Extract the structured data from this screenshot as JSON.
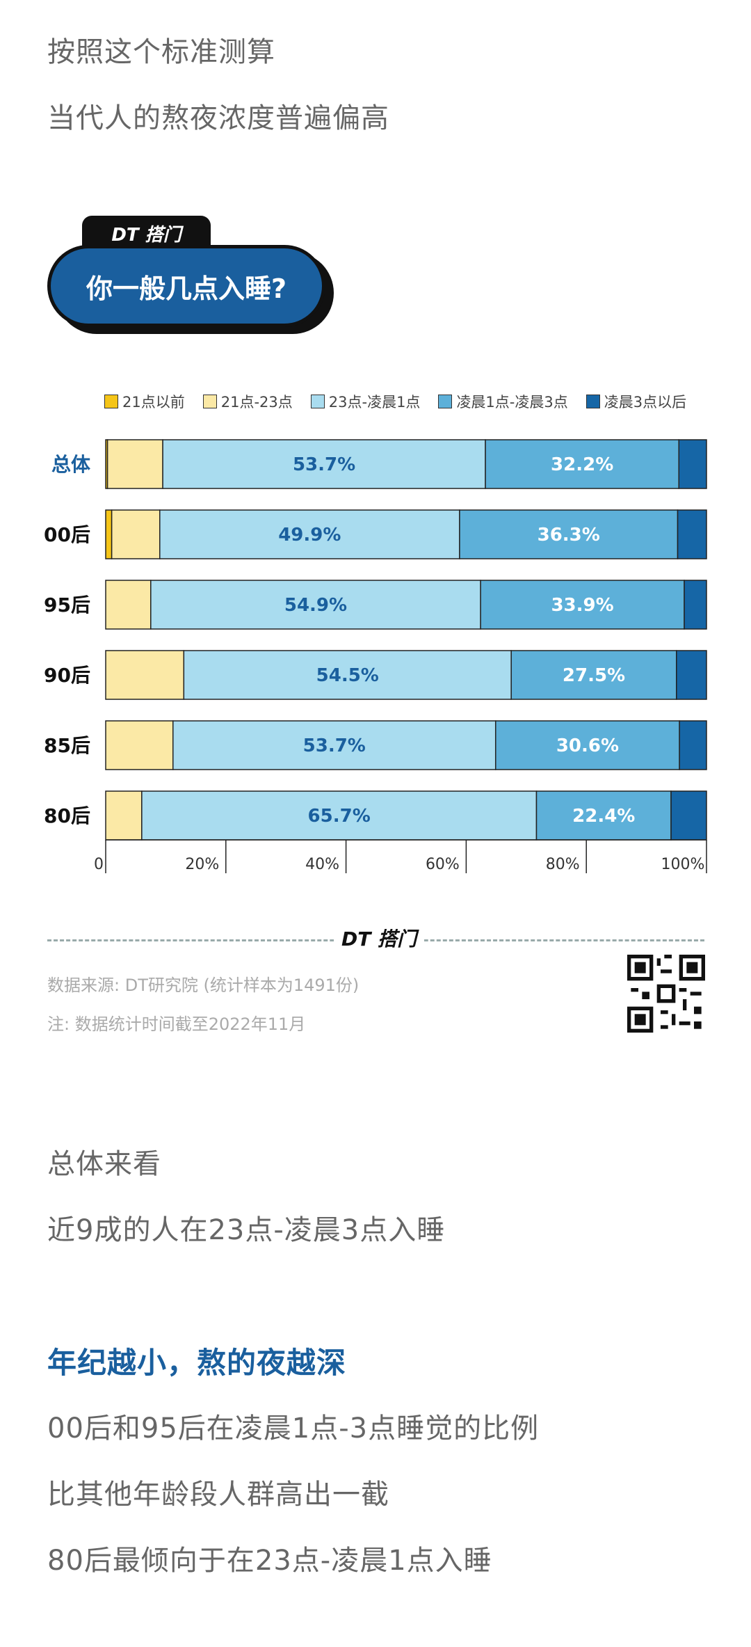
{
  "intro": {
    "line1": "按照这个标准测算",
    "line2": "当代人的熬夜浓度普遍偏高"
  },
  "card": {
    "brand": "DT 搭门",
    "title": "你一般几点入睡?"
  },
  "colors": {
    "accent": "#1a5f9e",
    "series": [
      "#f5c518",
      "#fbe9a6",
      "#a9dcef",
      "#5db0d9",
      "#1666a6"
    ]
  },
  "chart_data": {
    "type": "bar",
    "orientation": "horizontal-stacked-100",
    "series_names": [
      "21点以前",
      "21点-23点",
      "23点-凌晨1点",
      "凌晨1点-凌晨3点",
      "凌晨3点以后"
    ],
    "categories": [
      "总体",
      "00后",
      "95后",
      "90后",
      "85后",
      "80后"
    ],
    "rows": [
      {
        "label": "总体",
        "values": [
          0.3,
          9.2,
          53.7,
          32.2,
          4.6
        ]
      },
      {
        "label": "00后",
        "values": [
          1.0,
          8.0,
          49.9,
          36.3,
          4.8
        ]
      },
      {
        "label": "95后",
        "values": [
          0,
          7.5,
          54.9,
          33.9,
          3.7
        ]
      },
      {
        "label": "90后",
        "values": [
          0,
          13.0,
          54.5,
          27.5,
          5.0
        ]
      },
      {
        "label": "85后",
        "values": [
          0,
          11.2,
          53.7,
          30.6,
          4.5
        ]
      },
      {
        "label": "80后",
        "values": [
          0,
          6.0,
          65.7,
          22.4,
          5.9
        ]
      }
    ],
    "data_labels": [
      [
        "53.7%",
        "32.2%"
      ],
      [
        "49.9%",
        "36.3%"
      ],
      [
        "54.9%",
        "33.9%"
      ],
      [
        "54.5%",
        "27.5%"
      ],
      [
        "53.7%",
        "30.6%"
      ],
      [
        "65.7%",
        "22.4%"
      ]
    ],
    "x_ticks": [
      "0",
      "20%",
      "40%",
      "60%",
      "80%",
      "100%"
    ],
    "xlim": [
      0,
      100
    ]
  },
  "footer": {
    "brand": "DT 搭门",
    "source": "数据来源: DT研究院 (统计样本为1491份)",
    "note": "注: 数据统计时间截至2022年11月"
  },
  "body": {
    "line1": "总体来看",
    "line2": "近9成的人在23点-凌晨3点入睡",
    "highlight": "年纪越小，熬的夜越深",
    "line3": "00后和95后在凌晨1点-3点睡觉的比例",
    "line4": "比其他年龄段人群高出一截",
    "line5": "80后最倾向于在23点-凌晨1点入睡"
  }
}
